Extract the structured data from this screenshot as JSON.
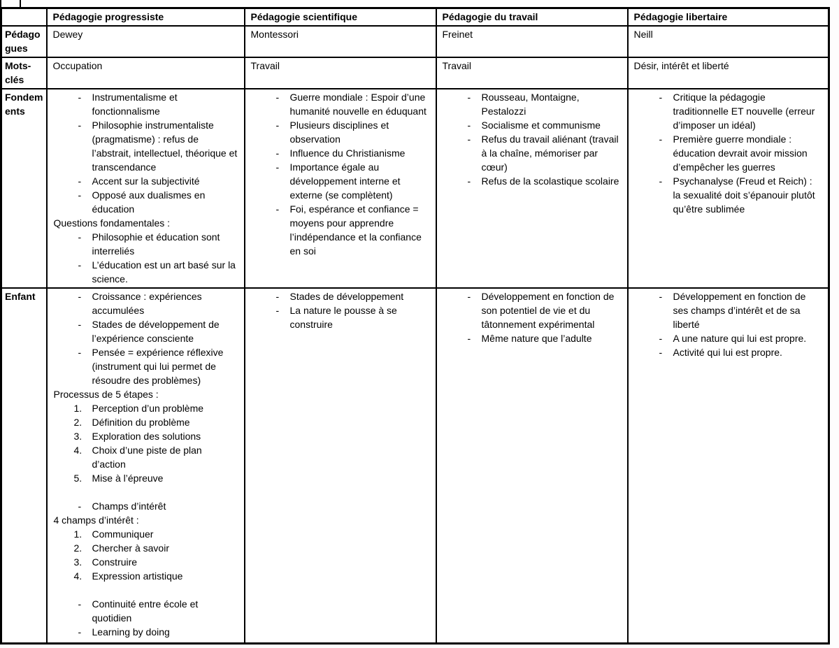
{
  "colors": {
    "border": "#000000",
    "background": "#ffffff",
    "text": "#000000"
  },
  "table": {
    "columns": [
      "",
      "Pédagogie progressiste",
      "Pédagogie scientifique",
      "Pédagogie du travail",
      "Pédagogie libertaire"
    ],
    "rows": [
      {
        "id": "pedagogues",
        "label": "Pédagogues",
        "cells": [
          "Dewey",
          "Montessori",
          "Freinet",
          "Neill"
        ]
      },
      {
        "id": "motscles",
        "label": "Mots-clés",
        "cells": [
          "Occupation",
          "Travail",
          "Travail",
          "Désir, intérêt et liberté"
        ]
      },
      {
        "id": "fondements",
        "label": "Fondements",
        "cells": [
          [
            {
              "t": "b",
              "x": "Instrumentalisme et fonctionnalisme"
            },
            {
              "t": "b",
              "x": "Philosophie instrumentaliste (pragmatisme) : refus de l’abstrait, intellectuel, théorique et transcendance"
            },
            {
              "t": "b",
              "x": "Accent sur la subjectivité"
            },
            {
              "t": "b",
              "x": "Opposé aux dualismes en éducation"
            },
            {
              "t": "p",
              "x": "Questions fondamentales :"
            },
            {
              "t": "b",
              "x": "Philosophie et éducation sont interreliés"
            },
            {
              "t": "b",
              "x": "L’éducation est un art basé sur la science."
            }
          ],
          [
            {
              "t": "b",
              "x": "Guerre mondiale : Espoir d’une humanité nouvelle en éduquant"
            },
            {
              "t": "b",
              "x": "Plusieurs disciplines et observation"
            },
            {
              "t": "b",
              "x": "Influence du Christianisme"
            },
            {
              "t": "b",
              "x": "Importance égale au développement interne et externe (se complètent)"
            },
            {
              "t": "b",
              "x": "Foi, espérance et confiance = moyens pour apprendre l’indépendance et la confiance en soi"
            }
          ],
          [
            {
              "t": "b",
              "x": "Rousseau, Montaigne, Pestalozzi"
            },
            {
              "t": "b",
              "x": "Socialisme et communisme"
            },
            {
              "t": "b",
              "x": "Refus du travail aliénant (travail à la chaîne, mémoriser par cœur)"
            },
            {
              "t": "b",
              "x": "Refus de la scolastique scolaire"
            }
          ],
          [
            {
              "t": "b",
              "x": "Critique la pédagogie traditionnelle ET nouvelle (erreur d’imposer un idéal)"
            },
            {
              "t": "b",
              "x": "Première guerre mondiale : éducation devrait avoir mission d’empêcher les guerres"
            },
            {
              "t": "b",
              "x": "Psychanalyse (Freud et Reich) : la sexualité doit s’épanouir plutôt qu’être sublimée"
            }
          ]
        ]
      },
      {
        "id": "enfant",
        "label": "Enfant",
        "cells": [
          [
            {
              "t": "b",
              "x": "Croissance : expériences accumulées"
            },
            {
              "t": "b",
              "x": "Stades de développement de l’expérience consciente"
            },
            {
              "t": "b",
              "x": "Pensée = expérience réflexive (instrument qui lui permet de résoudre des problèmes)"
            },
            {
              "t": "p",
              "x": "Processus de 5 étapes :"
            },
            {
              "t": "n",
              "n": "1.",
              "x": "Perception d’un problème"
            },
            {
              "t": "n",
              "n": "2.",
              "x": "Définition du problème"
            },
            {
              "t": "n",
              "n": "3.",
              "x": "Exploration des solutions"
            },
            {
              "t": "n",
              "n": "4.",
              "x": "Choix d’une piste de plan d’action"
            },
            {
              "t": "n",
              "n": "5.",
              "x": "Mise à l’épreuve"
            },
            {
              "t": "blank"
            },
            {
              "t": "b",
              "x": "Champs d’intérêt"
            },
            {
              "t": "p",
              "x": "4 champs d’intérêt :"
            },
            {
              "t": "n",
              "n": "1.",
              "x": "Communiquer"
            },
            {
              "t": "n",
              "n": "2.",
              "x": "Chercher à savoir"
            },
            {
              "t": "n",
              "n": "3.",
              "x": "Construire"
            },
            {
              "t": "n",
              "n": "4.",
              "x": "Expression artistique"
            },
            {
              "t": "blank"
            },
            {
              "t": "b",
              "x": "Continuité entre école et quotidien"
            },
            {
              "t": "b",
              "x": "Learning by doing"
            }
          ],
          [
            {
              "t": "b",
              "x": "Stades de développement"
            },
            {
              "t": "b",
              "x": "La nature le pousse à se construire"
            }
          ],
          [
            {
              "t": "b",
              "x": "Développement en fonction de son potentiel de vie et du tâtonnement expérimental"
            },
            {
              "t": "b",
              "x": "Même nature que l’adulte"
            }
          ],
          [
            {
              "t": "b",
              "x": "Développement en fonction de ses champs d’intérêt et de sa liberté"
            },
            {
              "t": "b",
              "x": "A une nature qui lui est propre."
            },
            {
              "t": "b",
              "x": "Activité qui lui est propre."
            }
          ]
        ]
      }
    ]
  }
}
